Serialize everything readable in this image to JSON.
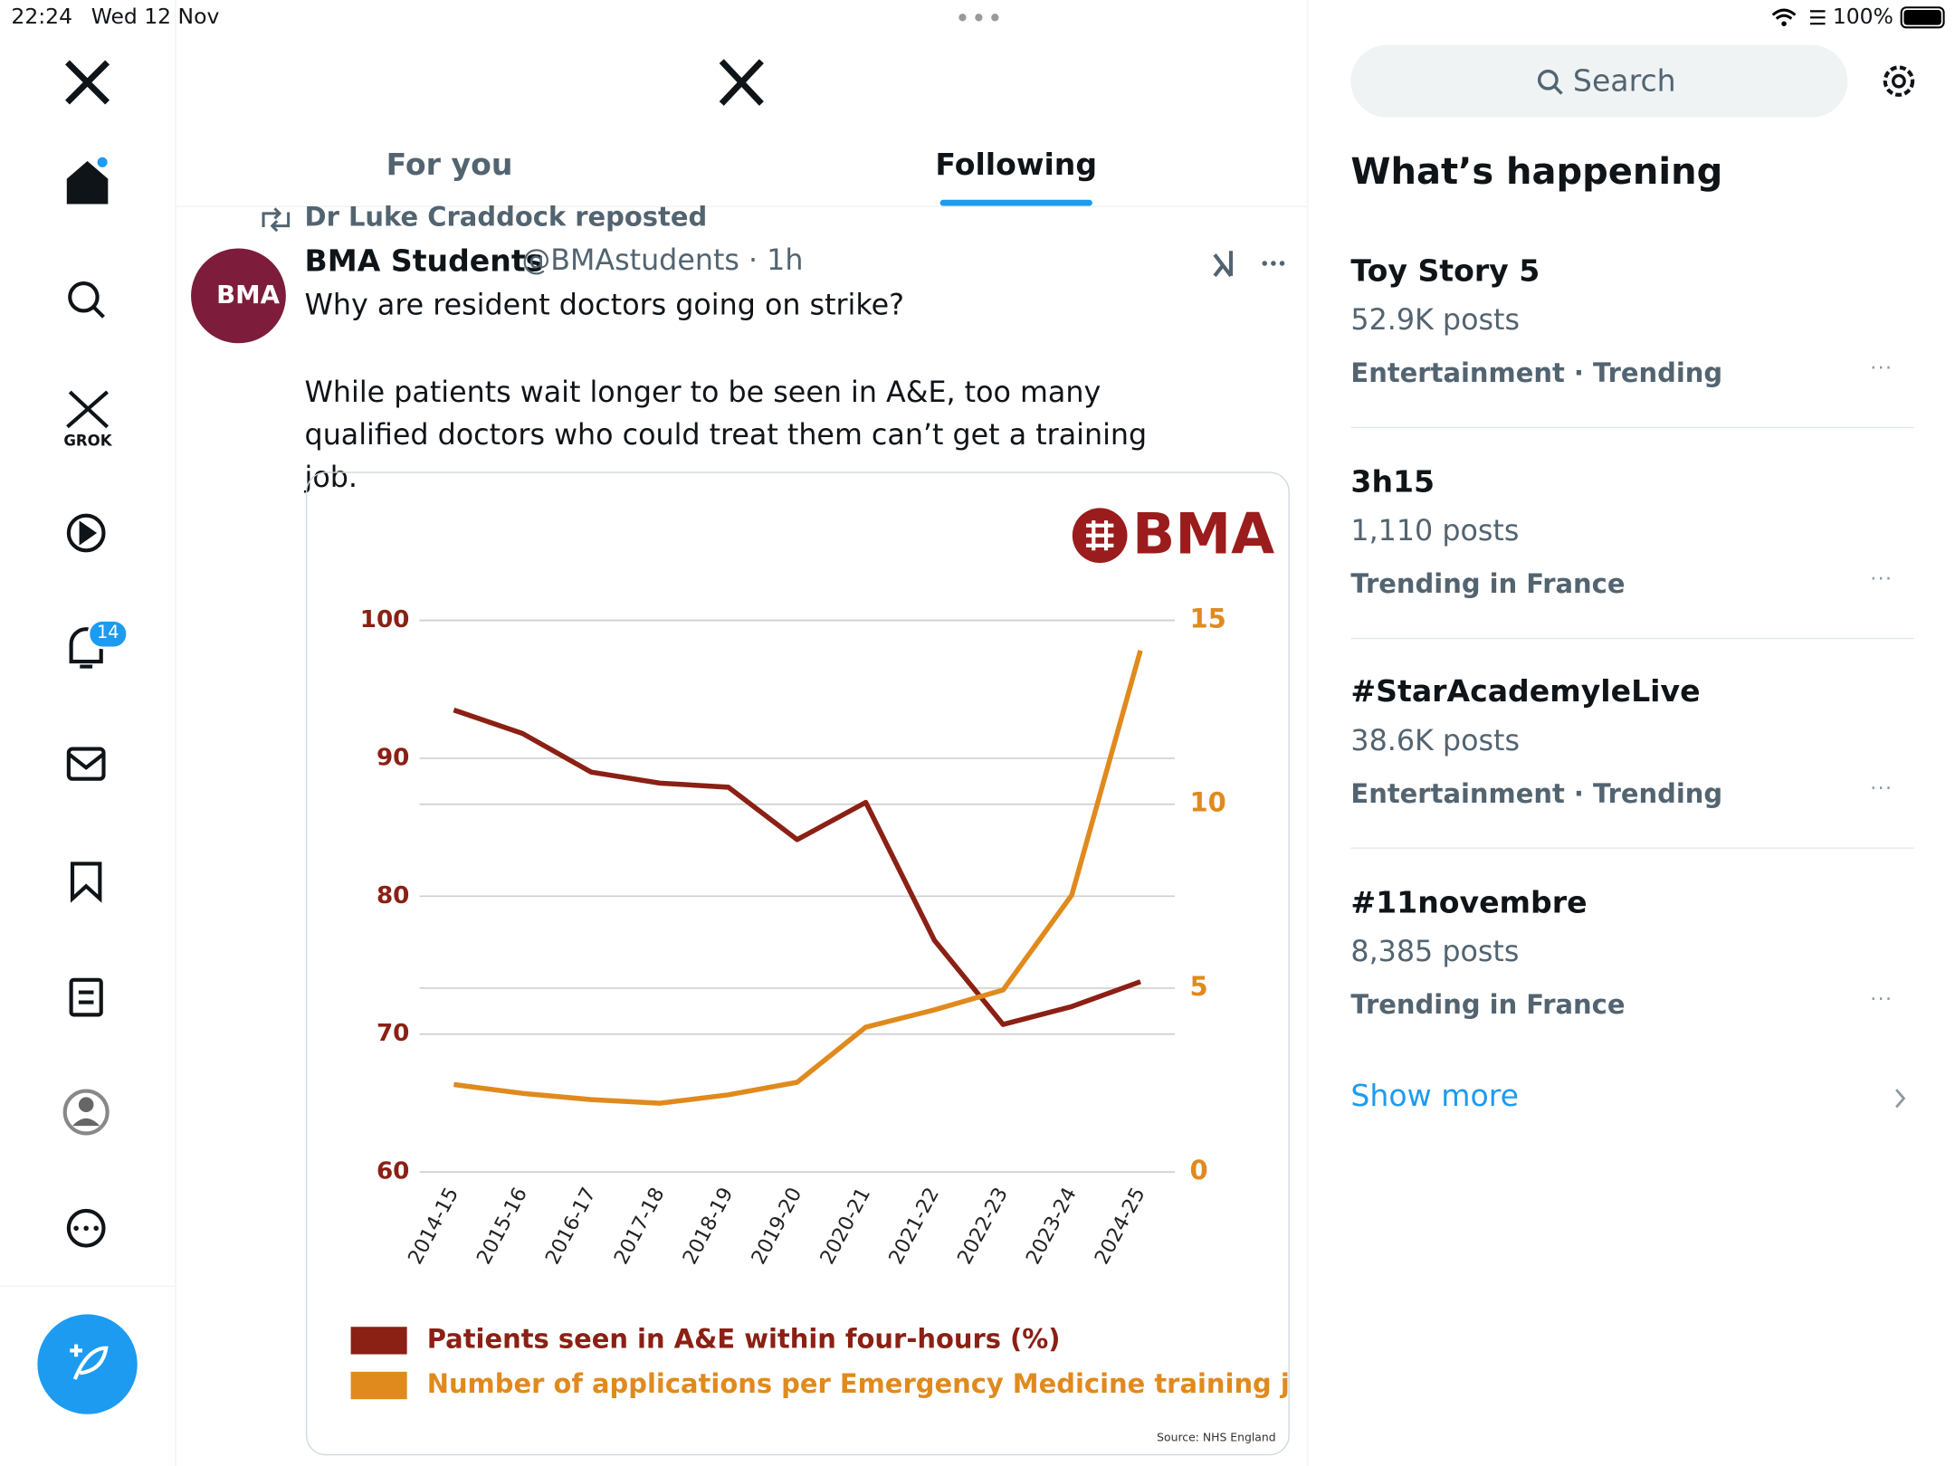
{
  "status_bar": {
    "time": "22:24",
    "date": "Wed 12 Nov",
    "battery": "100%"
  },
  "sidebar": {
    "grok_label": "GROK",
    "notifications_badge": "14"
  },
  "tabs": [
    "For you",
    "Following"
  ],
  "tweet": {
    "reposted_by": "Dr Luke Craddock reposted",
    "avatar_text": "BMA",
    "author": "BMA Students",
    "meta": "@BMAstudents · 1h",
    "text": [
      "Why are resident doctors going on strike?",
      "While patients wait longer to be seen in A&E, too many qualified doctors who could treat them can’t get a training job."
    ],
    "chart": {
      "type": "line",
      "logo": "BMA",
      "categories": [
        "2014-15",
        "2015-16",
        "2016-17",
        "2017-18",
        "2018-19",
        "2019-20",
        "2020-21",
        "2021-22",
        "2022-23",
        "2023-24",
        "2024-25"
      ],
      "series": [
        {
          "name": "Patients seen in A&E within four-hours (%)",
          "color": "#8b2014",
          "values": [
            93.5,
            91.8,
            89.0,
            88.2,
            87.9,
            84.1,
            86.8,
            76.8,
            70.7,
            72.0,
            73.8
          ]
        },
        {
          "name": "Number of applications per Emergency Medicine training job",
          "color": "#e08a1e",
          "axis": "y2",
          "values": [
            2.38,
            2.14,
            1.97,
            1.87,
            2.1,
            2.44,
            3.94,
            4.41,
            4.95,
            7.53,
            14.18
          ]
        }
      ],
      "ylim": [
        60,
        100
      ],
      "yticks": [
        60,
        70,
        80,
        90,
        100
      ],
      "y2lim": [
        0,
        15
      ],
      "y2ticks": [
        0,
        5,
        10,
        15
      ],
      "grid": true,
      "source": "Source: NHS England"
    }
  },
  "search_placeholder": "Search",
  "trends": {
    "title": "What’s happening",
    "items": [
      {
        "name": "Toy Story 5",
        "posts": "52.9K posts",
        "context": "Entertainment · Trending"
      },
      {
        "name": "3h15",
        "posts": "1,110 posts",
        "context": "Trending in France"
      },
      {
        "name": "#StarAcademyleLive",
        "posts": "38.6K posts",
        "context": "Entertainment · Trending"
      },
      {
        "name": "#11novembre",
        "posts": "8,385 posts",
        "context": "Trending in France"
      }
    ],
    "show_more": "Show more"
  }
}
